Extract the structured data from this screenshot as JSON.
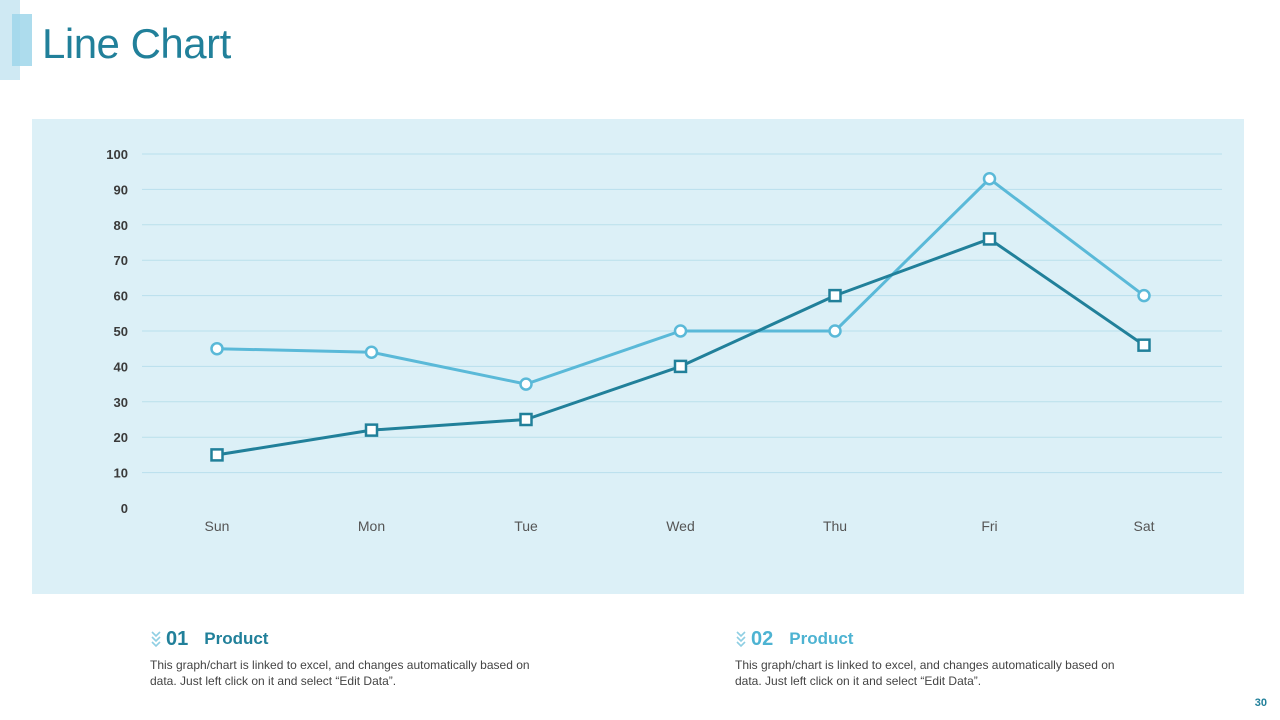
{
  "title": "Line Chart",
  "page_number": "30",
  "colors": {
    "accent": "#21809a",
    "panel_bg": "#dcf0f7",
    "series_1": "#21809a",
    "series_2": "#5ab9d8"
  },
  "info": [
    {
      "number": "01",
      "label": "Product",
      "description": "This graph/chart is linked to excel, and changes automatically based on data. Just left click on it and select “Edit Data”."
    },
    {
      "number": "02",
      "label": "Product",
      "description": "This graph/chart is linked to excel, and changes automatically based on data. Just left click on it and select “Edit Data”."
    }
  ],
  "chart_data": {
    "type": "line",
    "title": "",
    "xlabel": "",
    "ylabel": "",
    "categories": [
      "Sun",
      "Mon",
      "Tue",
      "Wed",
      "Thu",
      "Fri",
      "Sat"
    ],
    "y_ticks": [
      "0",
      "10",
      "20",
      "30",
      "40",
      "50",
      "60",
      "70",
      "80",
      "90",
      "100"
    ],
    "ylim": [
      0,
      100
    ],
    "grid": true,
    "legend": "none",
    "series": [
      {
        "marker": "square",
        "color": "#21809a",
        "values": [
          15,
          22,
          25,
          40,
          60,
          76,
          46
        ]
      },
      {
        "marker": "circle",
        "color": "#5ab9d8",
        "values": [
          45,
          44,
          35,
          50,
          50,
          93,
          60
        ]
      }
    ]
  }
}
